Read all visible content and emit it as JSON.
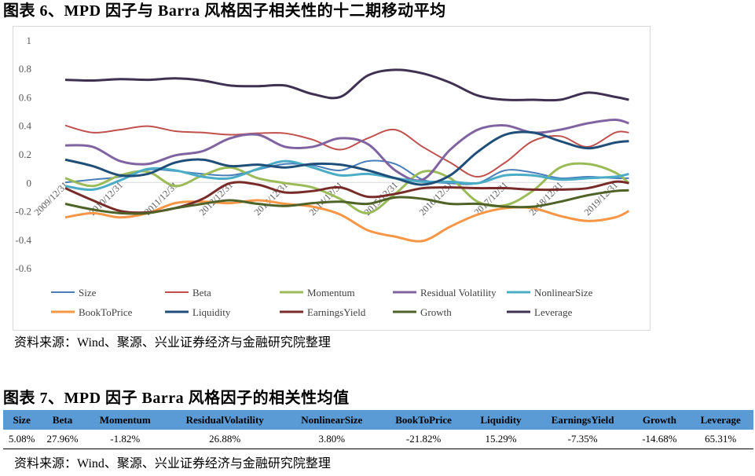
{
  "figure6": {
    "title": "图表 6、MPD 因子与 Barra 风格因子相关性的十二期移动平均",
    "source": "资料来源：Wind、聚源、兴业证券经济与金融研究院整理"
  },
  "chart_data": {
    "type": "line",
    "title": "",
    "xlabel": "",
    "ylabel": "",
    "ylim": [
      -0.6,
      1
    ],
    "yticks": [
      "1",
      "0.8",
      "0.6",
      "0.4",
      "0.2",
      "0",
      "-0.2",
      "-0.4",
      "-0.6"
    ],
    "xticks": [
      "2009/12/31",
      "2010/12/31",
      "2011/12/31",
      "2012/12/31",
      "2013/12/31",
      "2014/12/31",
      "2015/12/31",
      "2016/12/31",
      "2017/12/31",
      "2018/12/31",
      "2019/12/31"
    ],
    "x": [
      "2009/12",
      "2010/06",
      "2010/12",
      "2011/06",
      "2011/12",
      "2012/06",
      "2012/12",
      "2013/06",
      "2013/12",
      "2014/06",
      "2014/12",
      "2015/06",
      "2015/12",
      "2016/06",
      "2016/12",
      "2017/06",
      "2017/12",
      "2018/06",
      "2018/12",
      "2019/06",
      "2019/12",
      "2020/03"
    ],
    "grid": false,
    "legend": "bottom",
    "series": [
      {
        "name": "Size",
        "color": "#4a7ebb",
        "values": [
          0.0,
          0.02,
          0.04,
          0.09,
          0.08,
          0.06,
          0.05,
          0.09,
          0.13,
          0.12,
          0.085,
          0.15,
          0.13,
          0.02,
          -0.005,
          -0.005,
          0.085,
          0.07,
          0.03,
          0.04,
          0.03,
          0.03
        ]
      },
      {
        "name": "Beta",
        "color": "#c0504d",
        "values": [
          0.4,
          0.35,
          0.37,
          0.395,
          0.36,
          0.35,
          0.335,
          0.345,
          0.345,
          0.3,
          0.23,
          0.31,
          0.37,
          0.25,
          0.14,
          0.04,
          0.14,
          0.29,
          0.325,
          0.25,
          0.35,
          0.35
        ]
      },
      {
        "name": "Momentum",
        "color": "#9bbb59",
        "values": [
          0.03,
          -0.025,
          0.05,
          0.075,
          -0.025,
          0.05,
          0.105,
          0.03,
          -0.005,
          -0.035,
          -0.115,
          -0.215,
          -0.08,
          0.075,
          0.03,
          -0.135,
          -0.16,
          -0.06,
          0.105,
          0.13,
          0.07,
          -0.005
        ]
      },
      {
        "name": "Residual Volatility",
        "color": "#8064a2",
        "values": [
          0.26,
          0.25,
          0.15,
          0.13,
          0.19,
          0.22,
          0.31,
          0.335,
          0.25,
          0.25,
          0.31,
          0.27,
          0.085,
          0.02,
          0.23,
          0.37,
          0.4,
          0.35,
          0.37,
          0.415,
          0.44,
          0.415
        ]
      },
      {
        "name": "NonlinearSize",
        "color": "#4bacc6",
        "values": [
          -0.025,
          -0.05,
          0.015,
          0.095,
          0.085,
          0.04,
          0.03,
          0.095,
          0.15,
          0.105,
          0.05,
          0.06,
          0.03,
          0.005,
          0.005,
          -0.005,
          0.05,
          0.05,
          0.02,
          0.03,
          0.04,
          0.06
        ]
      },
      {
        "name": "BookToPrice",
        "color": "#f79646",
        "values": [
          -0.245,
          -0.215,
          -0.245,
          -0.215,
          -0.145,
          -0.135,
          -0.145,
          -0.125,
          -0.15,
          -0.17,
          -0.225,
          -0.335,
          -0.38,
          -0.41,
          -0.31,
          -0.225,
          -0.18,
          -0.18,
          -0.235,
          -0.27,
          -0.245,
          -0.2
        ]
      },
      {
        "name": "Liquidity",
        "color": "#1f4e79",
        "values": [
          0.16,
          0.115,
          0.05,
          0.06,
          0.14,
          0.16,
          0.115,
          0.125,
          0.105,
          0.13,
          0.125,
          0.085,
          0.03,
          -0.015,
          0.05,
          0.215,
          0.335,
          0.35,
          0.29,
          0.24,
          0.28,
          0.29
        ]
      },
      {
        "name": "EarningsYield",
        "color": "#772c2a",
        "values": [
          -0.04,
          -0.125,
          -0.2,
          -0.21,
          -0.18,
          -0.115,
          -0.005,
          -0.015,
          -0.07,
          -0.06,
          -0.035,
          -0.1,
          -0.08,
          -0.04,
          -0.035,
          -0.04,
          -0.04,
          -0.05,
          -0.05,
          -0.04,
          0.005,
          -0.005
        ]
      },
      {
        "name": "Growth",
        "color": "#4f6228",
        "values": [
          -0.15,
          -0.19,
          -0.215,
          -0.215,
          -0.18,
          -0.15,
          -0.125,
          -0.15,
          -0.165,
          -0.145,
          -0.135,
          -0.15,
          -0.105,
          -0.115,
          -0.15,
          -0.15,
          -0.17,
          -0.17,
          -0.135,
          -0.09,
          -0.06,
          -0.055
        ]
      },
      {
        "name": "Leverage",
        "color": "#3f3151",
        "values": [
          0.72,
          0.715,
          0.725,
          0.72,
          0.73,
          0.715,
          0.68,
          0.675,
          0.68,
          0.62,
          0.6,
          0.75,
          0.79,
          0.765,
          0.7,
          0.61,
          0.58,
          0.58,
          0.58,
          0.63,
          0.6,
          0.58
        ]
      }
    ]
  },
  "figure7": {
    "title": "图表 7、MPD 因子 Barra 风格因子的相关性均值",
    "headers": [
      "Size",
      "Beta",
      "Momentum",
      "ResidualVolatility",
      "NonlinearSize",
      "BookToPrice",
      "Liquidity",
      "EarningsYield",
      "Growth",
      "Leverage"
    ],
    "values": [
      "5.08%",
      "27.96%",
      "-1.82%",
      "26.88%",
      "3.80%",
      "-21.82%",
      "15.29%",
      "-7.35%",
      "-14.68%",
      "65.31%"
    ],
    "header_color": "#5b9bd5",
    "source": "资料来源：Wind、聚源、兴业证券经济与金融研究院整理"
  }
}
